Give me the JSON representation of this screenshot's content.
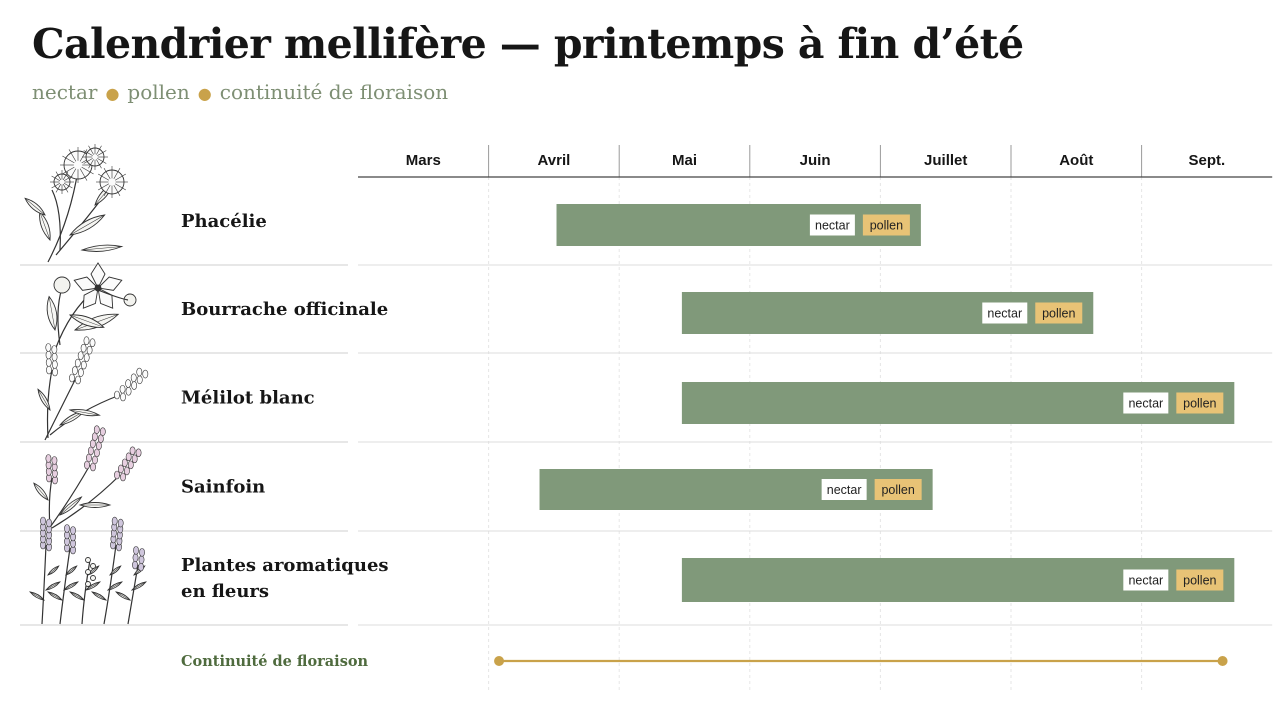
{
  "title": "Calendrier mellifère — printemps à fin d’été",
  "subtitle": {
    "items": [
      "nectar",
      "pollen",
      "continuité de floraison"
    ]
  },
  "colors": {
    "bar": "#80997a",
    "nectar_tag": "#ffffff",
    "pollen_tag": "#e8c376",
    "continuity": "#c9a24a",
    "continuity_label": "#4f6b3e",
    "subtitle": "#7e8f74"
  },
  "chart_data": {
    "type": "bar",
    "orientation": "horizontal-timeline",
    "months": [
      "Mars",
      "Avril",
      "Mai",
      "Juin",
      "Juillet",
      "Août",
      "Sept."
    ],
    "x_unit": "month",
    "xlim": [
      0,
      7
    ],
    "grid": true,
    "series": [
      {
        "label": [
          "Phacélie"
        ],
        "icon": "phacelia-icon",
        "start": 1.52,
        "end": 4.31,
        "tags": [
          "nectar",
          "pollen"
        ]
      },
      {
        "label": [
          "Bourrache officinale"
        ],
        "icon": "borage-icon",
        "start": 2.48,
        "end": 5.63,
        "tags": [
          "nectar",
          "pollen"
        ]
      },
      {
        "label": [
          "Mélilot blanc"
        ],
        "icon": "melilot-icon",
        "start": 2.48,
        "end": 6.71,
        "tags": [
          "nectar",
          "pollen"
        ]
      },
      {
        "label": [
          "Sainfoin"
        ],
        "icon": "sainfoin-icon",
        "start": 1.39,
        "end": 4.4,
        "tags": [
          "nectar",
          "pollen"
        ]
      },
      {
        "label": [
          "Plantes aromatiques",
          "en fleurs"
        ],
        "icon": "aromatic-plants-icon",
        "start": 2.48,
        "end": 6.71,
        "tags": [
          "nectar",
          "pollen"
        ]
      }
    ],
    "continuity": {
      "label": "Continuité de floraison",
      "start": 1.08,
      "end": 6.62
    }
  }
}
